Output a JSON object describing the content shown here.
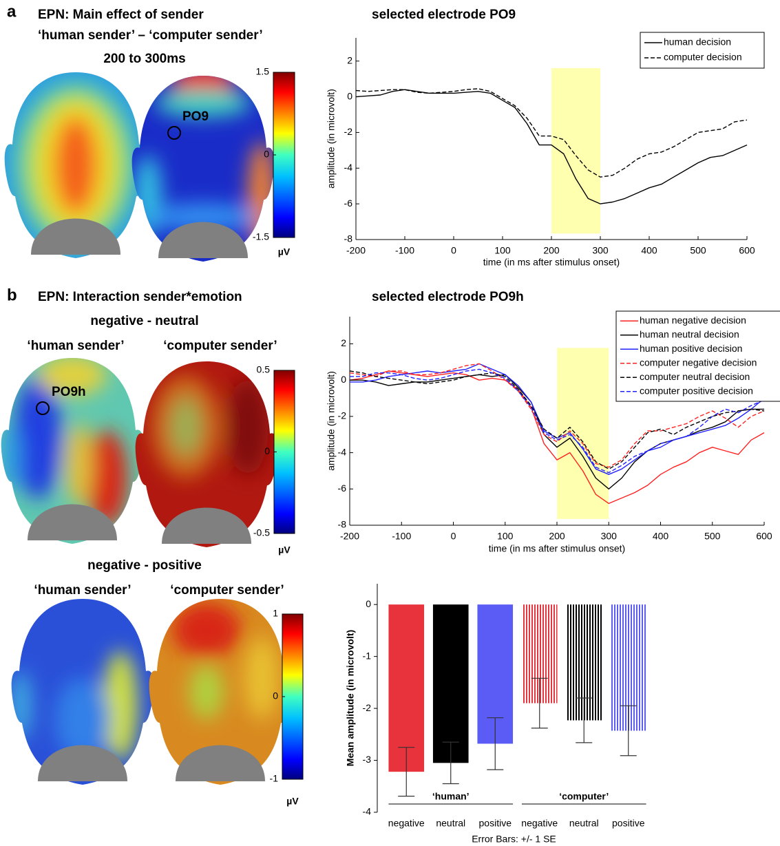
{
  "panels": {
    "a": {
      "label": "a",
      "title": "EPN: Main effect of sender",
      "subtitle": "‘human sender’ – ‘computer sender’",
      "window": "200 to 300ms",
      "electrode": "PO9"
    },
    "b": {
      "label": "b",
      "title": "EPN: Interaction sender*emotion",
      "contrast1": "negative - neutral",
      "contrast2": "negative - positive",
      "human": "‘human sender’",
      "computer": "‘computer sender’",
      "electrode": "PO9h"
    }
  },
  "chart_data": [
    {
      "type": "line",
      "title": "selected electrode PO9",
      "xlabel": "time (in ms after stimulus onset)",
      "ylabel": "amplitude (in microvolt)",
      "x": [
        -200,
        -175,
        -150,
        -125,
        -100,
        -75,
        -50,
        -25,
        0,
        25,
        50,
        75,
        100,
        125,
        150,
        175,
        200,
        225,
        250,
        275,
        300,
        325,
        350,
        375,
        400,
        425,
        450,
        475,
        500,
        525,
        550,
        575,
        600
      ],
      "xlim": [
        -200,
        600
      ],
      "xticks": [
        -200,
        -100,
        0,
        100,
        200,
        300,
        400,
        500,
        600
      ],
      "ylim": [
        -8,
        3.3
      ],
      "yticks": [
        -8,
        -6,
        -4,
        -2,
        0,
        2
      ],
      "highlight": [
        200,
        300
      ],
      "legend": "upper right",
      "series": [
        {
          "name": "human decision",
          "color": "#000000",
          "style": "solid",
          "values": [
            0,
            0.05,
            0.1,
            0.3,
            0.4,
            0.3,
            0.2,
            0.2,
            0.2,
            0.25,
            0.3,
            0.2,
            -0.2,
            -0.6,
            -1.5,
            -2.7,
            -2.7,
            -3.2,
            -4.6,
            -5.7,
            -6.0,
            -5.9,
            -5.7,
            -5.4,
            -5.1,
            -4.9,
            -4.5,
            -4.1,
            -3.7,
            -3.4,
            -3.3,
            -3.0,
            -2.7
          ]
        },
        {
          "name": "computer decision",
          "color": "#000000",
          "style": "dashed",
          "values": [
            0.35,
            0.3,
            0.35,
            0.4,
            0.4,
            0.25,
            0.2,
            0.25,
            0.3,
            0.4,
            0.45,
            0.3,
            -0.1,
            -0.5,
            -1.2,
            -2.2,
            -2.2,
            -2.4,
            -3.3,
            -4.1,
            -4.5,
            -4.4,
            -4.0,
            -3.5,
            -3.2,
            -3.1,
            -2.8,
            -2.4,
            -2.0,
            -1.9,
            -1.8,
            -1.4,
            -1.3
          ]
        }
      ]
    },
    {
      "type": "line",
      "title": "selected electrode PO9h",
      "xlabel": "time (in ms after stimulus onset)",
      "ylabel": "amplitude (in microvolt)",
      "x": [
        -200,
        -175,
        -150,
        -125,
        -100,
        -75,
        -50,
        -25,
        0,
        25,
        50,
        75,
        100,
        125,
        150,
        175,
        200,
        225,
        250,
        275,
        300,
        325,
        350,
        375,
        400,
        425,
        450,
        475,
        500,
        525,
        550,
        575,
        600
      ],
      "xlim": [
        -200,
        600
      ],
      "xticks": [
        -200,
        -100,
        0,
        100,
        200,
        300,
        400,
        500,
        600
      ],
      "ylim": [
        -8,
        3.5
      ],
      "yticks": [
        -8,
        -6,
        -4,
        -2,
        0,
        2
      ],
      "highlight": [
        200,
        300
      ],
      "legend": "upper right",
      "series": [
        {
          "name": "human negative decision",
          "color": "#ff2020",
          "style": "solid",
          "values": [
            0,
            0.1,
            0.3,
            0.5,
            0.4,
            0.3,
            0.2,
            0.3,
            0.4,
            0.3,
            0,
            0.1,
            0,
            -0.5,
            -1.5,
            -3.5,
            -4.4,
            -4.0,
            -5.0,
            -6.3,
            -6.8,
            -6.5,
            -6.2,
            -5.8,
            -5.2,
            -4.8,
            -4.5,
            -4.0,
            -3.7,
            -3.9,
            -4.1,
            -3.3,
            -2.9
          ]
        },
        {
          "name": "human neutral decision",
          "color": "#000000",
          "style": "solid",
          "values": [
            0,
            0,
            -0.1,
            -0.3,
            -0.2,
            -0.1,
            -0.1,
            0,
            0.1,
            0.2,
            0.3,
            0.2,
            0.3,
            -0.4,
            -1.2,
            -3.0,
            -3.7,
            -3.2,
            -4.2,
            -5.4,
            -6.0,
            -5.4,
            -4.5,
            -3.9,
            -3.5,
            -3.3,
            -3.1,
            -2.8,
            -2.6,
            -2.3,
            -1.7,
            -1.6,
            -1.6
          ]
        },
        {
          "name": "human positive decision",
          "color": "#2020ff",
          "style": "solid",
          "values": [
            -0.1,
            -0.1,
            0,
            0.2,
            0.3,
            0.4,
            0.5,
            0.4,
            0.5,
            0.6,
            0.9,
            0.6,
            0.3,
            -0.3,
            -1.2,
            -2.8,
            -3.2,
            -2.9,
            -3.8,
            -4.9,
            -5.2,
            -4.9,
            -4.4,
            -3.9,
            -3.7,
            -3.3,
            -3.1,
            -2.9,
            -2.7,
            -2.5,
            -2.1,
            -1.6,
            -1.0
          ]
        },
        {
          "name": "computer negative decision",
          "color": "#ff2020",
          "style": "dashed",
          "values": [
            0.4,
            0.3,
            0.2,
            0.5,
            0.5,
            0.3,
            0.3,
            0.4,
            0.6,
            0.8,
            0.9,
            0.5,
            0,
            -0.6,
            -1.6,
            -3.0,
            -3.4,
            -2.8,
            -3.5,
            -4.6,
            -4.8,
            -4.4,
            -3.5,
            -2.8,
            -2.8,
            -2.6,
            -2.4,
            -2.0,
            -1.7,
            -2.1,
            -2.6,
            -2.0,
            -1.7
          ]
        },
        {
          "name": "computer neutral decision",
          "color": "#000000",
          "style": "dashed",
          "values": [
            0.5,
            0.4,
            0.2,
            0.1,
            0,
            -0.1,
            -0.2,
            -0.1,
            0,
            0.2,
            0.3,
            0.4,
            0.2,
            -0.5,
            -1.4,
            -2.7,
            -3.2,
            -2.6,
            -3.4,
            -4.5,
            -4.9,
            -4.5,
            -3.7,
            -2.9,
            -2.7,
            -3.0,
            -2.6,
            -2.3,
            -2.0,
            -1.8,
            -1.7,
            -1.6,
            -1.7
          ]
        },
        {
          "name": "computer positive decision",
          "color": "#2020ff",
          "style": "dashed",
          "values": [
            0.2,
            0.2,
            0.4,
            0.4,
            0.3,
            0.1,
            0,
            0.1,
            0.3,
            0.5,
            0.6,
            0.4,
            0.1,
            -0.6,
            -1.5,
            -2.9,
            -3.3,
            -3.0,
            -3.7,
            -4.8,
            -5.1,
            -4.7,
            -4.2,
            -3.9,
            -3.5,
            -3.3,
            -3.1,
            -2.6,
            -2.0,
            -1.6,
            -1.8,
            -1.4,
            -1.1
          ]
        }
      ]
    },
    {
      "type": "bar",
      "ylabel": "Mean amplitude (in microvolt)",
      "xlabel": "Error Bars: +/- 1 SE",
      "categories": [
        "negative",
        "neutral",
        "positive",
        "negative",
        "neutral",
        "positive"
      ],
      "values": [
        -3.22,
        -3.05,
        -2.68,
        -1.9,
        -2.23,
        -2.43
      ],
      "errors": [
        0.47,
        0.4,
        0.5,
        0.48,
        0.43,
        0.48
      ],
      "colors": [
        "#e8333d",
        "#000000",
        "#5b5bf5",
        "#e8333d",
        "#000000",
        "#5b5bf5"
      ],
      "hatched": [
        false,
        false,
        false,
        true,
        true,
        true
      ],
      "group_labels": [
        "‘human’",
        "‘computer’"
      ],
      "ylim": [
        -4,
        0.4
      ],
      "yticks": [
        -4,
        -3,
        -2,
        -1,
        0
      ]
    },
    {
      "type": "colorbar",
      "colormap": "jet",
      "ylim": [
        -1.5,
        1.5
      ],
      "yticks": [
        -1.5,
        0,
        1.5
      ],
      "unit": "µV"
    },
    {
      "type": "colorbar",
      "colormap": "jet",
      "ylim": [
        -0.5,
        0.5
      ],
      "yticks": [
        -0.5,
        0,
        0.5
      ],
      "unit": "µV"
    },
    {
      "type": "colorbar",
      "colormap": "jet",
      "ylim": [
        -1,
        1
      ],
      "yticks": [
        -1,
        0,
        1
      ],
      "unit": "µV"
    }
  ]
}
